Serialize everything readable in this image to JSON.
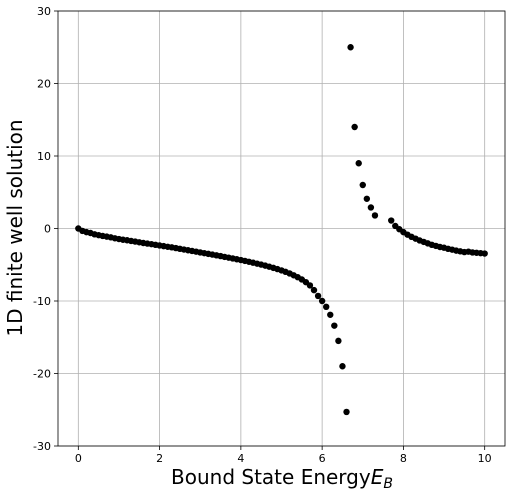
{
  "chart_data": {
    "type": "scatter",
    "xlabel": "Bound State Energy",
    "xlabel_subscript_symbol": "E",
    "xlabel_subscript": "B",
    "ylabel": "1D finite well solution",
    "xlim": [
      -0.5,
      10.5
    ],
    "ylim": [
      -30,
      30
    ],
    "xticks": [
      0,
      2,
      4,
      6,
      8,
      10
    ],
    "yticks": [
      -30,
      -20,
      -10,
      0,
      10,
      20,
      30
    ],
    "grid": true,
    "marker_color": "#000000",
    "series": [
      {
        "x": [
          0.0,
          0.1,
          0.2,
          0.3,
          0.4,
          0.5,
          0.6,
          0.7,
          0.8,
          0.9,
          1.0,
          1.1,
          1.2,
          1.3,
          1.4,
          1.5,
          1.6,
          1.7,
          1.8,
          1.9,
          2.0,
          2.1,
          2.2,
          2.3,
          2.4,
          2.5,
          2.6,
          2.7,
          2.8,
          2.9,
          3.0,
          3.1,
          3.2,
          3.3,
          3.4,
          3.5,
          3.6,
          3.7,
          3.8,
          3.9,
          4.0,
          4.1,
          4.2,
          4.3,
          4.4,
          4.5,
          4.6,
          4.7,
          4.8,
          4.9,
          5.0,
          5.1,
          5.2,
          5.3,
          5.4,
          5.5,
          5.6,
          5.7,
          5.8,
          5.9,
          6.0,
          6.1,
          6.2,
          6.3,
          6.4,
          6.5,
          6.6,
          6.7,
          6.8,
          6.9,
          7.0,
          7.1,
          7.2,
          7.3,
          7.7,
          7.8,
          7.9,
          8.0,
          8.1,
          8.2,
          8.3,
          8.4,
          8.5,
          8.6,
          8.7,
          8.8,
          8.9,
          9.0,
          9.1,
          9.2,
          9.3,
          9.4,
          9.5,
          9.6,
          9.7,
          9.8,
          9.9,
          10.0
        ],
        "y": [
          0.0,
          -0.33,
          -0.5,
          -0.62,
          -0.8,
          -0.92,
          -1.03,
          -1.12,
          -1.22,
          -1.35,
          -1.45,
          -1.55,
          -1.62,
          -1.72,
          -1.8,
          -1.9,
          -2.0,
          -2.08,
          -2.16,
          -2.25,
          -2.34,
          -2.43,
          -2.52,
          -2.6,
          -2.7,
          -2.8,
          -2.9,
          -3.0,
          -3.1,
          -3.2,
          -3.3,
          -3.4,
          -3.5,
          -3.6,
          -3.7,
          -3.8,
          -3.92,
          -4.02,
          -4.13,
          -4.24,
          -4.35,
          -4.47,
          -4.59,
          -4.72,
          -4.85,
          -4.98,
          -5.12,
          -5.27,
          -5.43,
          -5.6,
          -5.78,
          -5.98,
          -6.2,
          -6.45,
          -6.72,
          -7.03,
          -7.4,
          -7.85,
          -8.5,
          -9.3,
          -10.0,
          -10.8,
          -11.9,
          -13.4,
          -15.5,
          -19.0,
          -25.3,
          25.0,
          14.0,
          9.0,
          6.0,
          4.1,
          2.9,
          1.8,
          1.1,
          0.35,
          -0.1,
          -0.5,
          -0.85,
          -1.15,
          -1.4,
          -1.65,
          -1.85,
          -2.05,
          -2.25,
          -2.4,
          -2.55,
          -2.65,
          -2.8,
          -2.92,
          -3.05,
          -3.15,
          -3.25,
          -3.2,
          -3.3,
          -3.35,
          -3.4,
          -3.45
        ]
      }
    ]
  }
}
